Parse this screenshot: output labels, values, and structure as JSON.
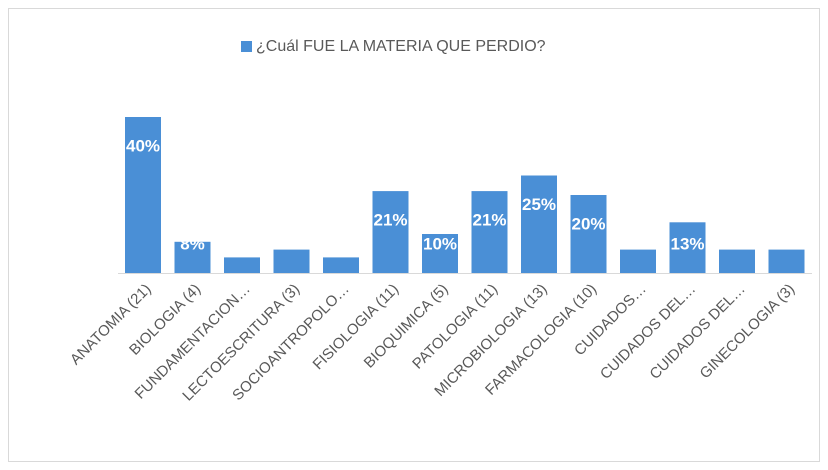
{
  "chart_data": {
    "type": "bar",
    "legend": "¿Cuál FUE LA MATERIA QUE PERDIO?",
    "color": "#4a8fd6",
    "categories": [
      "ANATOMIA (21)",
      "BIOLOGIA (4)",
      "FUNDAMENTACION…",
      "LECTOESCRITURA (3)",
      "SOCIOANTROPOLO…",
      "FISIOLOGIA (11)",
      "BIOQUIMICA (5)",
      "PATOLOGIA (11)",
      "MICROBIOLOGIA (13)",
      "FARMACOLOGIA (10)",
      "CUIDADOS…",
      "CUIDADOS DEL…",
      "CUIDADOS DEL…",
      "GINECOLOGIA (3)"
    ],
    "values": [
      40,
      8,
      4,
      6,
      4,
      21,
      10,
      21,
      25,
      20,
      6,
      13,
      6,
      6
    ],
    "value_labels": [
      "40%",
      "8%",
      "4%",
      "6%",
      "4%",
      "21%",
      "10%",
      "21%",
      "25%",
      "20%",
      "6%",
      "13%",
      "6%",
      "6%"
    ]
  }
}
